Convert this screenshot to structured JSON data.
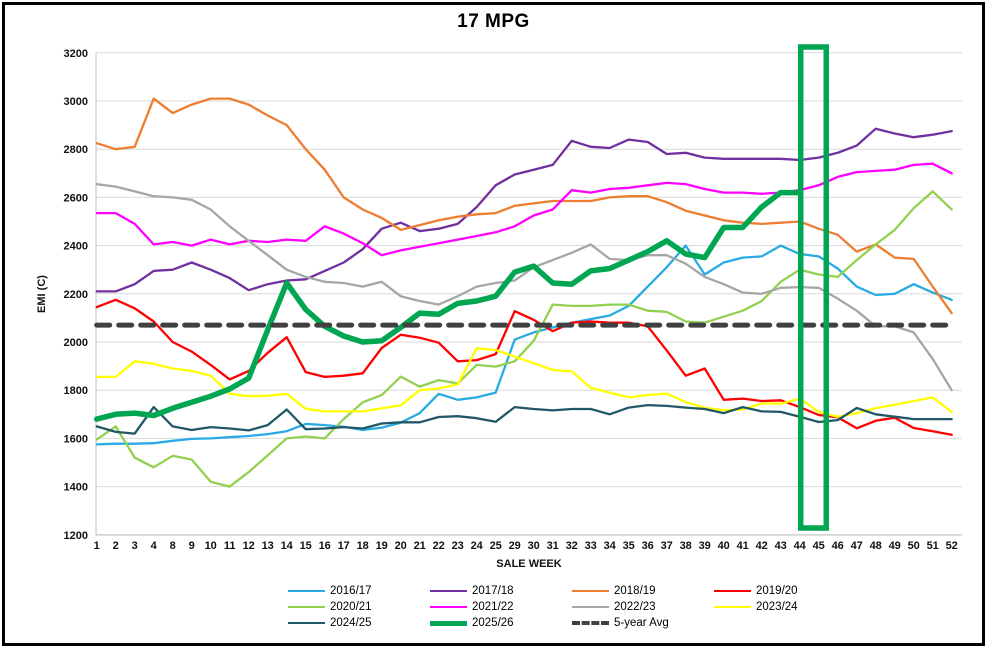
{
  "title": "17 MPG",
  "chart_data": {
    "type": "line",
    "title": "17 MPG",
    "xlabel": "SALE WEEK",
    "ylabel": "EMI (C)",
    "ylim": [
      1200,
      3200
    ],
    "ytick_step": 200,
    "grid": "horizontal",
    "legend_position": "bottom",
    "categories": [
      1,
      2,
      3,
      4,
      8,
      9,
      10,
      11,
      12,
      13,
      14,
      15,
      16,
      17,
      18,
      19,
      20,
      21,
      22,
      23,
      24,
      25,
      29,
      30,
      31,
      32,
      33,
      34,
      35,
      36,
      37,
      38,
      39,
      40,
      41,
      42,
      43,
      44,
      45,
      46,
      47,
      48,
      49,
      50,
      51,
      52
    ],
    "series": [
      {
        "name": "2016/17",
        "color": "#29ABE2",
        "width": 2.3,
        "values": [
          1575,
          1578,
          1578,
          1580,
          1590,
          1598,
          1600,
          1605,
          1610,
          1618,
          1630,
          1660,
          1655,
          1648,
          1635,
          1645,
          1665,
          1705,
          1785,
          1760,
          1770,
          1790,
          2010,
          2040,
          2060,
          2080,
          2095,
          2110,
          2150,
          2230,
          2310,
          2400,
          2280,
          2330,
          2350,
          2355,
          2400,
          2365,
          2355,
          2305,
          2230,
          2195,
          2200,
          2240,
          2205,
          2175
        ]
      },
      {
        "name": "2017/18",
        "color": "#7030A0",
        "width": 2.3,
        "values": [
          2210,
          2210,
          2240,
          2295,
          2300,
          2330,
          2300,
          2265,
          2215,
          2240,
          2255,
          2260,
          2295,
          2330,
          2385,
          2470,
          2495,
          2460,
          2470,
          2490,
          2560,
          2650,
          2695,
          2715,
          2735,
          2835,
          2810,
          2805,
          2840,
          2830,
          2780,
          2785,
          2765,
          2760,
          2760,
          2760,
          2760,
          2755,
          2765,
          2785,
          2815,
          2885,
          2865,
          2850,
          2860,
          2875
        ]
      },
      {
        "name": "2018/19",
        "color": "#ED7D31",
        "width": 2.3,
        "values": [
          2825,
          2800,
          2810,
          3010,
          2950,
          2985,
          3010,
          3010,
          2985,
          2940,
          2900,
          2800,
          2715,
          2600,
          2550,
          2515,
          2465,
          2485,
          2505,
          2520,
          2530,
          2535,
          2565,
          2575,
          2585,
          2585,
          2585,
          2600,
          2605,
          2605,
          2580,
          2545,
          2525,
          2505,
          2495,
          2490,
          2495,
          2500,
          2470,
          2445,
          2375,
          2405,
          2350,
          2345,
          2230,
          2120
        ]
      },
      {
        "name": "2019/20",
        "color": "#FF0000",
        "width": 2.3,
        "values": [
          2145,
          2175,
          2140,
          2085,
          2000,
          1960,
          1905,
          1845,
          1880,
          1955,
          2020,
          1875,
          1855,
          1860,
          1870,
          1975,
          2030,
          2018,
          1997,
          1920,
          1925,
          1950,
          2128,
          2092,
          2045,
          2080,
          2085,
          2080,
          2080,
          2065,
          1965,
          1860,
          1890,
          1760,
          1765,
          1755,
          1758,
          1730,
          1697,
          1688,
          1642,
          1673,
          1686,
          1643,
          1630,
          1615
        ]
      },
      {
        "name": "2020/21",
        "color": "#92D050",
        "width": 2.3,
        "values": [
          1595,
          1650,
          1520,
          1480,
          1528,
          1512,
          1420,
          1400,
          1460,
          1530,
          1600,
          1608,
          1600,
          1680,
          1750,
          1780,
          1856,
          1815,
          1842,
          1828,
          1905,
          1898,
          1920,
          2005,
          2155,
          2150,
          2150,
          2155,
          2155,
          2130,
          2125,
          2085,
          2080,
          2105,
          2130,
          2170,
          2250,
          2300,
          2280,
          2270,
          2340,
          2405,
          2465,
          2555,
          2625,
          2550
        ]
      },
      {
        "name": "2021/22",
        "color": "#FF00FF",
        "width": 2.3,
        "values": [
          2535,
          2535,
          2490,
          2405,
          2415,
          2400,
          2425,
          2405,
          2420,
          2415,
          2425,
          2420,
          2480,
          2450,
          2410,
          2360,
          2380,
          2395,
          2410,
          2425,
          2440,
          2455,
          2480,
          2525,
          2550,
          2630,
          2620,
          2635,
          2640,
          2650,
          2660,
          2655,
          2635,
          2620,
          2620,
          2615,
          2620,
          2630,
          2650,
          2685,
          2705,
          2710,
          2715,
          2735,
          2740,
          2700
        ]
      },
      {
        "name": "2022/23",
        "color": "#A6A6A6",
        "width": 2.3,
        "values": [
          2655,
          2645,
          2625,
          2605,
          2600,
          2590,
          2550,
          2480,
          2420,
          2360,
          2300,
          2270,
          2250,
          2245,
          2230,
          2250,
          2190,
          2170,
          2155,
          2190,
          2230,
          2245,
          2255,
          2310,
          2340,
          2370,
          2405,
          2345,
          2340,
          2360,
          2360,
          2325,
          2270,
          2240,
          2205,
          2200,
          2225,
          2228,
          2225,
          2180,
          2130,
          2065,
          2065,
          2040,
          1930,
          1800
        ]
      },
      {
        "name": "2023/24",
        "color": "#FFFF00",
        "width": 2.3,
        "values": [
          1855,
          1855,
          1920,
          1910,
          1890,
          1880,
          1860,
          1785,
          1775,
          1777,
          1785,
          1723,
          1712,
          1712,
          1712,
          1725,
          1737,
          1800,
          1807,
          1824,
          1974,
          1967,
          1939,
          1912,
          1884,
          1878,
          1810,
          1790,
          1770,
          1780,
          1786,
          1751,
          1727,
          1717,
          1720,
          1745,
          1744,
          1765,
          1710,
          1690,
          1705,
          1725,
          1740,
          1755,
          1770,
          1710
        ]
      },
      {
        "name": "2024/25",
        "color": "#215868",
        "width": 2.3,
        "values": [
          1650,
          1627,
          1620,
          1730,
          1650,
          1635,
          1647,
          1641,
          1633,
          1655,
          1720,
          1638,
          1641,
          1647,
          1641,
          1662,
          1667,
          1667,
          1689,
          1692,
          1684,
          1669,
          1730,
          1722,
          1716,
          1722,
          1722,
          1700,
          1728,
          1738,
          1735,
          1728,
          1722,
          1705,
          1730,
          1712,
          1710,
          1690,
          1668,
          1676,
          1726,
          1700,
          1690,
          1680,
          1680,
          1680
        ]
      },
      {
        "name": "2025/26",
        "color": "#00A651",
        "width": 5.5,
        "values": [
          1680,
          1700,
          1705,
          1695,
          1725,
          1750,
          1775,
          1805,
          1850,
          2050,
          2245,
          2135,
          2065,
          2025,
          2000,
          2005,
          2060,
          2120,
          2115,
          2160,
          2170,
          2190,
          2290,
          2315,
          2245,
          2240,
          2295,
          2305,
          2340,
          2375,
          2420,
          2365,
          2350,
          2475,
          2475,
          2560,
          2620,
          2620,
          null,
          null,
          null,
          null,
          null,
          null,
          null,
          null
        ]
      },
      {
        "name": "5-year Avg",
        "color": "#404040",
        "width": 5,
        "dash": [
          13,
          9
        ],
        "constant": 2070
      }
    ],
    "highlight": {
      "from_week": 44,
      "to_week": 45.45,
      "color": "#00A651"
    }
  },
  "legend": {
    "rows": [
      [
        "2016/17",
        "2017/18",
        "2018/19",
        "2019/20"
      ],
      [
        "2020/21",
        "2021/22",
        "2022/23",
        "2023/24"
      ],
      [
        "2024/25",
        "2025/26",
        "5-year Avg"
      ]
    ]
  }
}
